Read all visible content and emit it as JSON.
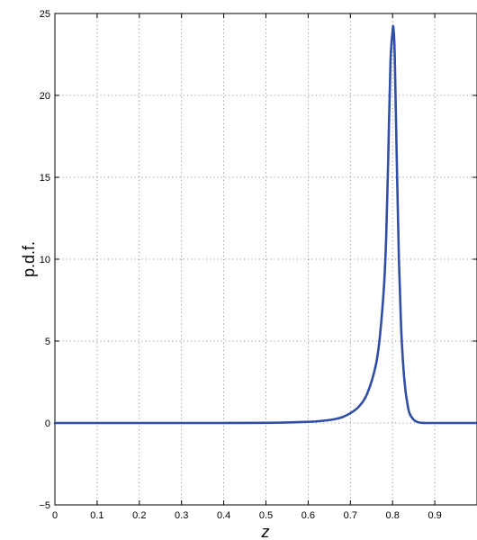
{
  "chart_data": {
    "type": "line",
    "title": "",
    "xlabel": "z",
    "ylabel": "p.d.f.",
    "xlim": [
      0,
      1
    ],
    "ylim": [
      -5,
      25
    ],
    "xticks": [
      0,
      0.1,
      0.2,
      0.3,
      0.4,
      0.5,
      0.6,
      0.7,
      0.8,
      0.9
    ],
    "xtick_labels": [
      "0",
      "0.1",
      "0.2",
      "0.3",
      "0.4",
      "0.5",
      "0.6",
      "0.7",
      "0.8",
      "0.9"
    ],
    "yticks": [
      -5,
      0,
      5,
      10,
      15,
      20,
      25
    ],
    "ytick_labels": [
      "−5",
      "0",
      "5",
      "10",
      "15",
      "20",
      "25"
    ],
    "grid": true,
    "grid_style": "dotted",
    "series": [
      {
        "color": "#2f4ea5",
        "x": [
          0,
          0.1,
          0.2,
          0.3,
          0.4,
          0.5,
          0.55,
          0.6,
          0.62,
          0.64,
          0.66,
          0.68,
          0.7,
          0.72,
          0.74,
          0.76,
          0.77,
          0.78,
          0.785,
          0.79,
          0.795,
          0.8,
          0.802,
          0.805,
          0.81,
          0.815,
          0.82,
          0.825,
          0.83,
          0.835,
          0.84,
          0.85,
          0.86,
          0.87,
          0.88,
          0.9,
          0.95,
          1.0
        ],
        "y": [
          0,
          0,
          0,
          0,
          0,
          0.01,
          0.03,
          0.07,
          0.1,
          0.15,
          0.22,
          0.35,
          0.6,
          1.0,
          1.8,
          3.5,
          5.3,
          8.5,
          11.5,
          16.5,
          22.0,
          23.9,
          24.1,
          22.5,
          16.0,
          10.0,
          6.0,
          3.6,
          2.1,
          1.2,
          0.6,
          0.2,
          0.05,
          0.01,
          0,
          0,
          0,
          0
        ]
      }
    ]
  }
}
